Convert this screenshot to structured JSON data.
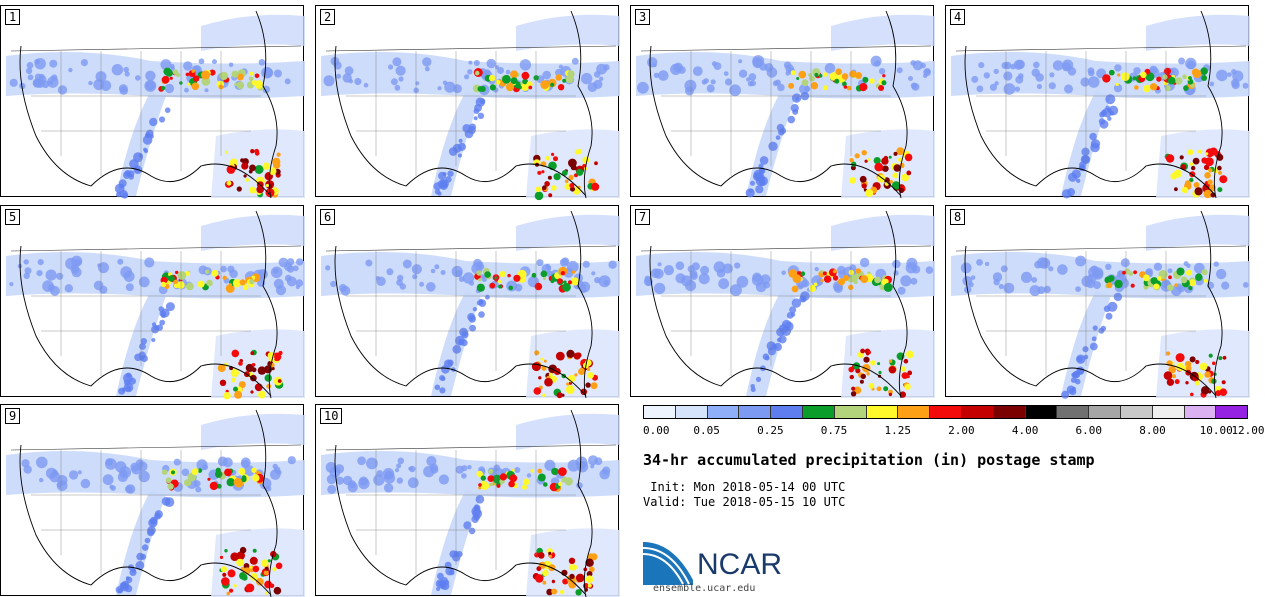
{
  "panels": [
    {
      "label": "1"
    },
    {
      "label": "2"
    },
    {
      "label": "3"
    },
    {
      "label": "4"
    },
    {
      "label": "5"
    },
    {
      "label": "6"
    },
    {
      "label": "7"
    },
    {
      "label": "8"
    },
    {
      "label": "9"
    },
    {
      "label": "10"
    }
  ],
  "colorbar": {
    "colors": [
      "#eef4fd",
      "#d6e4fb",
      "#8fb0f8",
      "#7d9af3",
      "#5e7ef0",
      "#0b9d2a",
      "#b3d47a",
      "#fff92c",
      "#fea015",
      "#f30b0b",
      "#c50000",
      "#7b0000",
      "#000000",
      "#707070",
      "#a6a6a6",
      "#c8c8c8",
      "#efefef",
      "#dcb1f2",
      "#9522e3"
    ],
    "tick_labels": [
      "0.00",
      "0.05",
      "0.25",
      "0.75",
      "1.25",
      "2.00",
      "4.00",
      "6.00",
      "8.00",
      "10.00",
      "12.00"
    ]
  },
  "title": "34-hr accumulated precipitation (in) postage stamp",
  "init": " Init: Mon 2018-05-14 00 UTC",
  "valid": "Valid: Tue 2018-05-15 10 UTC",
  "logo": {
    "text": "NCAR",
    "site": "ensemble.ucar.edu"
  }
}
